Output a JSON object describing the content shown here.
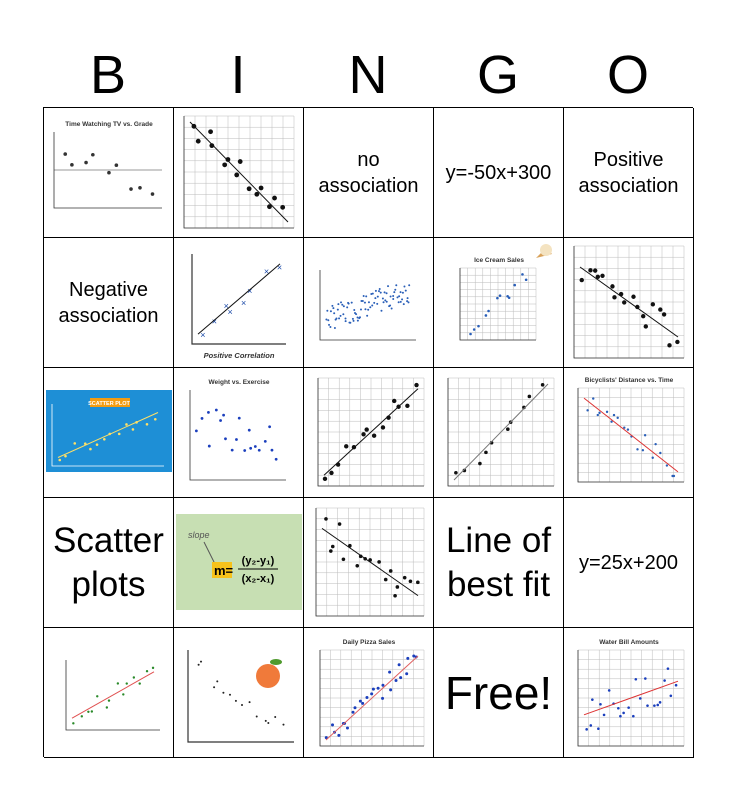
{
  "header": [
    "B",
    "I",
    "N",
    "G",
    "O"
  ],
  "rows": [
    [
      {
        "caption": "Time Watching TV vs. Grade"
      },
      null,
      "no association",
      "y=-50x+300",
      "Positive association"
    ],
    [
      "Negative association",
      {
        "caption": "Positive Correlation"
      },
      null,
      {
        "caption": "Ice Cream Sales"
      },
      null
    ],
    [
      {
        "caption": "SCATTER PLOT"
      },
      {
        "caption": "Weight vs. Exercise"
      },
      null,
      null,
      {
        "caption": "Bicyclists' Distance vs. Time"
      }
    ],
    [
      "Scatter plots",
      {
        "caption": "slope",
        "formula_lead": "m=",
        "formula_top": "(y₂-y₁)",
        "formula_bottom": "(x₂-x₁)"
      },
      null,
      "Line of best fit",
      "y=25x+200"
    ],
    [
      null,
      null,
      {
        "caption": "Daily Pizza Sales"
      },
      "Free!",
      {
        "caption": "Water Bill Amounts"
      }
    ]
  ]
}
